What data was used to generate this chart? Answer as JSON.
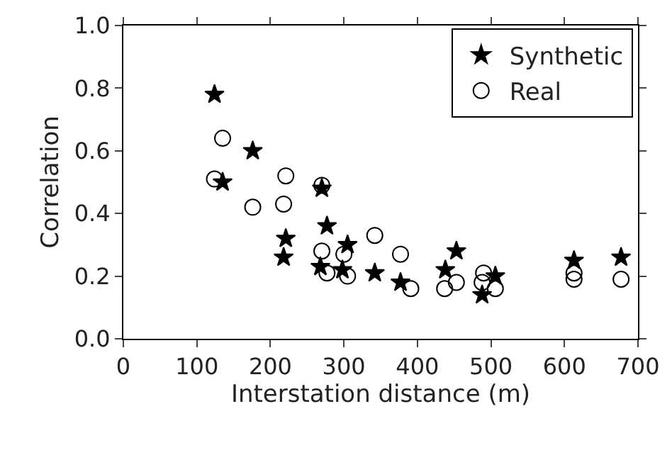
{
  "chart_data": {
    "type": "scatter",
    "xlabel": "Interstation distance (m)",
    "ylabel": "Correlation",
    "xlim": [
      0,
      700
    ],
    "xticks": [
      0,
      100,
      200,
      300,
      400,
      500,
      600,
      700
    ],
    "ylim": [
      0,
      1.0
    ],
    "yticks": [
      {
        "value": 0,
        "label": "0.0"
      },
      0.2,
      0.4,
      0.6,
      0.8,
      {
        "value": 1.0,
        "label": "1.0"
      }
    ],
    "legend": "top right",
    "series": [
      {
        "name": "Synthetic",
        "color": "#000000",
        "marker": "star",
        "x": [
          124,
          135,
          176,
          221,
          218,
          270,
          277,
          268,
          305,
          298,
          342,
          377,
          438,
          453,
          488,
          506,
          613,
          677
        ],
        "values": [
          0.78,
          0.5,
          0.6,
          0.32,
          0.26,
          0.48,
          0.36,
          0.23,
          0.3,
          0.22,
          0.21,
          0.18,
          0.22,
          0.28,
          0.14,
          0.2,
          0.25,
          0.26
        ]
      },
      {
        "name": "Real",
        "color": "#000000",
        "marker": "circle",
        "x": [
          135,
          124,
          176,
          221,
          218,
          270,
          270,
          277,
          300,
          305,
          342,
          377,
          391,
          437,
          453,
          488,
          490,
          506,
          613,
          613,
          677
        ],
        "values": [
          0.64,
          0.51,
          0.42,
          0.52,
          0.43,
          0.49,
          0.28,
          0.21,
          0.27,
          0.2,
          0.33,
          0.27,
          0.16,
          0.16,
          0.18,
          0.18,
          0.21,
          0.16,
          0.21,
          0.19,
          0.19
        ]
      }
    ]
  }
}
